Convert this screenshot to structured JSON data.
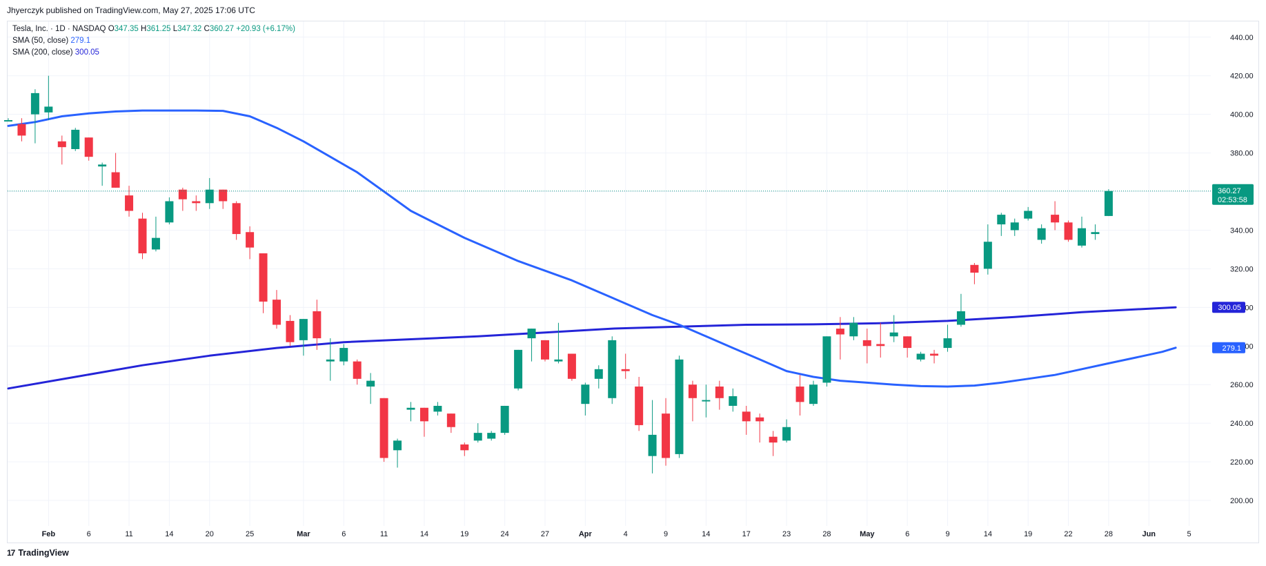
{
  "header": {
    "publisher_line": "Jhyerczyk published on TradingView.com, May 27, 2025 17:06 UTC"
  },
  "legend": {
    "symbol": "Tesla, Inc. · 1D · NASDAQ",
    "o_label": "O",
    "o_value": "347.35",
    "h_label": "H",
    "h_value": "361.25",
    "l_label": "L",
    "l_value": "347.32",
    "c_label": "C",
    "c_value": "360.27",
    "change": "+20.93 (+6.17%)",
    "sma50_label": "SMA (50, close)",
    "sma50_value": "279.1",
    "sma200_label": "SMA (200, close)",
    "sma200_value": "300.05"
  },
  "price_badge": {
    "value": "360.27",
    "countdown": "02:53:58"
  },
  "sma_badges": {
    "sma50": "279.1",
    "sma200": "300.05"
  },
  "brand": {
    "logo_text": "17",
    "name": "TradingView"
  },
  "colors": {
    "up": "#089981",
    "down": "#f23645",
    "sma50": "#2962ff",
    "sma200": "#2424d8",
    "last_price_line": "#089981"
  },
  "chart_data": {
    "type": "candlestick",
    "title": "Tesla, Inc. · 1D · NASDAQ",
    "y_axis": {
      "ticks": [
        200,
        220,
        240,
        260,
        280,
        300,
        320,
        340,
        360,
        380,
        400,
        420,
        440
      ],
      "range": [
        195,
        446
      ]
    },
    "x_axis": {
      "ticks": [
        {
          "label": "Feb",
          "i": 3
        },
        {
          "label": "6",
          "i": 6
        },
        {
          "label": "11",
          "i": 9
        },
        {
          "label": "14",
          "i": 12
        },
        {
          "label": "20",
          "i": 15
        },
        {
          "label": "25",
          "i": 18
        },
        {
          "label": "Mar",
          "i": 22
        },
        {
          "label": "6",
          "i": 25
        },
        {
          "label": "11",
          "i": 28
        },
        {
          "label": "14",
          "i": 31
        },
        {
          "label": "19",
          "i": 34
        },
        {
          "label": "24",
          "i": 37
        },
        {
          "label": "27",
          "i": 40
        },
        {
          "label": "Apr",
          "i": 43
        },
        {
          "label": "4",
          "i": 46
        },
        {
          "label": "9",
          "i": 49
        },
        {
          "label": "14",
          "i": 52
        },
        {
          "label": "17",
          "i": 55
        },
        {
          "label": "23",
          "i": 58
        },
        {
          "label": "28",
          "i": 61
        },
        {
          "label": "May",
          "i": 64
        },
        {
          "label": "6",
          "i": 67
        },
        {
          "label": "9",
          "i": 70
        },
        {
          "label": "14",
          "i": 73
        },
        {
          "label": "19",
          "i": 76
        },
        {
          "label": "22",
          "i": 79
        },
        {
          "label": "28",
          "i": 82
        },
        {
          "label": "Jun",
          "i": 85
        },
        {
          "label": "5",
          "i": 88
        }
      ]
    },
    "candles": [
      {
        "o": 397,
        "h": 398,
        "l": 397,
        "c": 397
      },
      {
        "o": 395,
        "h": 398,
        "l": 386,
        "c": 389
      },
      {
        "o": 400,
        "h": 413,
        "l": 385,
        "c": 411
      },
      {
        "o": 401,
        "h": 420,
        "l": 397,
        "c": 404
      },
      {
        "o": 386,
        "h": 389,
        "l": 374,
        "c": 383
      },
      {
        "o": 382,
        "h": 393,
        "l": 381,
        "c": 392
      },
      {
        "o": 388,
        "h": 388,
        "l": 376,
        "c": 378
      },
      {
        "o": 373,
        "h": 375,
        "l": 363,
        "c": 374
      },
      {
        "o": 370,
        "h": 380,
        "l": 362,
        "c": 362
      },
      {
        "o": 358,
        "h": 363,
        "l": 347,
        "c": 350
      },
      {
        "o": 346,
        "h": 349,
        "l": 325,
        "c": 328
      },
      {
        "o": 330,
        "h": 347,
        "l": 329,
        "c": 336
      },
      {
        "o": 344,
        "h": 357,
        "l": 343,
        "c": 355
      },
      {
        "o": 361,
        "h": 362,
        "l": 350,
        "c": 356
      },
      {
        "o": 355,
        "h": 358,
        "l": 350,
        "c": 354
      },
      {
        "o": 354,
        "h": 367,
        "l": 351,
        "c": 361
      },
      {
        "o": 361,
        "h": 361,
        "l": 351,
        "c": 355
      },
      {
        "o": 354,
        "h": 355,
        "l": 335,
        "c": 338
      },
      {
        "o": 339,
        "h": 342,
        "l": 325,
        "c": 331
      },
      {
        "o": 328,
        "h": 328,
        "l": 297,
        "c": 303
      },
      {
        "o": 304,
        "h": 309,
        "l": 289,
        "c": 291
      },
      {
        "o": 293,
        "h": 296,
        "l": 280,
        "c": 282
      },
      {
        "o": 283,
        "h": 294,
        "l": 275,
        "c": 294
      },
      {
        "o": 298,
        "h": 304,
        "l": 278,
        "c": 284
      },
      {
        "o": 272,
        "h": 284,
        "l": 262,
        "c": 273
      },
      {
        "o": 272,
        "h": 281,
        "l": 270,
        "c": 279
      },
      {
        "o": 272,
        "h": 273,
        "l": 260,
        "c": 263
      },
      {
        "o": 259,
        "h": 266,
        "l": 250,
        "c": 262
      },
      {
        "o": 253,
        "h": 253,
        "l": 220,
        "c": 222
      },
      {
        "o": 226,
        "h": 232,
        "l": 217,
        "c": 231
      },
      {
        "o": 247,
        "h": 251,
        "l": 241,
        "c": 248
      },
      {
        "o": 248,
        "h": 248,
        "l": 233,
        "c": 241
      },
      {
        "o": 246,
        "h": 251,
        "l": 244,
        "c": 249
      },
      {
        "o": 245,
        "h": 245,
        "l": 235,
        "c": 238
      },
      {
        "o": 229,
        "h": 230,
        "l": 223,
        "c": 226
      },
      {
        "o": 231,
        "h": 240,
        "l": 230,
        "c": 235
      },
      {
        "o": 232,
        "h": 236,
        "l": 231,
        "c": 235
      },
      {
        "o": 235,
        "h": 249,
        "l": 234,
        "c": 249
      },
      {
        "o": 258,
        "h": 278,
        "l": 257,
        "c": 278
      },
      {
        "o": 284,
        "h": 289,
        "l": 272,
        "c": 289
      },
      {
        "o": 283,
        "h": 283,
        "l": 272,
        "c": 273
      },
      {
        "o": 272,
        "h": 292,
        "l": 271,
        "c": 273
      },
      {
        "o": 276,
        "h": 276,
        "l": 262,
        "c": 263
      },
      {
        "o": 250,
        "h": 261,
        "l": 244,
        "c": 260
      },
      {
        "o": 263,
        "h": 270,
        "l": 258,
        "c": 268
      },
      {
        "o": 253,
        "h": 285,
        "l": 250,
        "c": 283
      },
      {
        "o": 268,
        "h": 276,
        "l": 263,
        "c": 267
      },
      {
        "o": 259,
        "h": 264,
        "l": 236,
        "c": 239
      },
      {
        "o": 223,
        "h": 252,
        "l": 214,
        "c": 234
      },
      {
        "o": 245,
        "h": 253,
        "l": 218,
        "c": 222
      },
      {
        "o": 224,
        "h": 275,
        "l": 222,
        "c": 273
      },
      {
        "o": 260,
        "h": 262,
        "l": 241,
        "c": 253
      },
      {
        "o": 252,
        "h": 260,
        "l": 243,
        "c": 252
      },
      {
        "o": 259,
        "h": 262,
        "l": 247,
        "c": 253
      },
      {
        "o": 249,
        "h": 258,
        "l": 246,
        "c": 254
      },
      {
        "o": 246,
        "h": 249,
        "l": 234,
        "c": 241
      },
      {
        "o": 243,
        "h": 245,
        "l": 230,
        "c": 241
      },
      {
        "o": 233,
        "h": 236,
        "l": 223,
        "c": 230
      },
      {
        "o": 231,
        "h": 242,
        "l": 230,
        "c": 238
      },
      {
        "o": 259,
        "h": 265,
        "l": 244,
        "c": 251
      },
      {
        "o": 250,
        "h": 262,
        "l": 249,
        "c": 260
      },
      {
        "o": 261,
        "h": 285,
        "l": 259,
        "c": 285
      },
      {
        "o": 289,
        "h": 295,
        "l": 273,
        "c": 286
      },
      {
        "o": 285,
        "h": 295,
        "l": 283,
        "c": 292
      },
      {
        "o": 283,
        "h": 289,
        "l": 271,
        "c": 280
      },
      {
        "o": 281,
        "h": 292,
        "l": 274,
        "c": 280
      },
      {
        "o": 285,
        "h": 296,
        "l": 282,
        "c": 287
      },
      {
        "o": 285,
        "h": 285,
        "l": 274,
        "c": 279
      },
      {
        "o": 273,
        "h": 277,
        "l": 272,
        "c": 276
      },
      {
        "o": 276,
        "h": 278,
        "l": 271,
        "c": 275
      },
      {
        "o": 279,
        "h": 291,
        "l": 277,
        "c": 284
      },
      {
        "o": 291,
        "h": 307,
        "l": 290,
        "c": 298
      },
      {
        "o": 322,
        "h": 323,
        "l": 312,
        "c": 318
      },
      {
        "o": 320,
        "h": 343,
        "l": 317,
        "c": 334
      },
      {
        "o": 343,
        "h": 349,
        "l": 337,
        "c": 348
      },
      {
        "o": 340,
        "h": 346,
        "l": 337,
        "c": 344
      },
      {
        "o": 346,
        "h": 352,
        "l": 345,
        "c": 350
      },
      {
        "o": 335,
        "h": 343,
        "l": 333,
        "c": 341
      },
      {
        "o": 348,
        "h": 355,
        "l": 340,
        "c": 344
      },
      {
        "o": 344,
        "h": 345,
        "l": 334,
        "c": 335
      },
      {
        "o": 332,
        "h": 347,
        "l": 331,
        "c": 341
      },
      {
        "o": 338,
        "h": 343,
        "l": 335,
        "c": 339
      },
      {
        "o": 347.35,
        "h": 361.25,
        "l": 347.32,
        "c": 360.27
      }
    ],
    "series": [
      {
        "name": "SMA (50, close)",
        "color": "#2962ff",
        "points": [
          [
            0,
            394
          ],
          [
            2,
            396
          ],
          [
            4,
            399
          ],
          [
            6,
            400.5
          ],
          [
            8,
            401.5
          ],
          [
            10,
            402
          ],
          [
            12,
            402
          ],
          [
            14,
            402
          ],
          [
            16,
            401.8
          ],
          [
            18,
            399
          ],
          [
            20,
            393
          ],
          [
            22,
            386
          ],
          [
            24,
            378
          ],
          [
            26,
            370
          ],
          [
            28,
            360
          ],
          [
            30,
            350
          ],
          [
            32,
            343
          ],
          [
            34,
            336
          ],
          [
            36,
            330
          ],
          [
            38,
            324
          ],
          [
            40,
            319
          ],
          [
            42,
            314
          ],
          [
            44,
            308
          ],
          [
            46,
            302
          ],
          [
            48,
            296
          ],
          [
            50,
            291
          ],
          [
            52,
            285
          ],
          [
            54,
            279
          ],
          [
            56,
            273
          ],
          [
            58,
            267
          ],
          [
            60,
            264
          ],
          [
            62,
            262
          ],
          [
            64,
            261
          ],
          [
            66,
            260
          ],
          [
            68,
            259.2
          ],
          [
            70,
            259
          ],
          [
            72,
            259.5
          ],
          [
            74,
            261
          ],
          [
            76,
            263
          ],
          [
            78,
            265
          ],
          [
            80,
            268
          ],
          [
            82,
            271
          ],
          [
            84,
            274
          ],
          [
            86,
            277
          ],
          [
            87,
            279.1
          ]
        ]
      },
      {
        "name": "SMA (200, close)",
        "color": "#2424d8",
        "points": [
          [
            0,
            258
          ],
          [
            5,
            264
          ],
          [
            10,
            270
          ],
          [
            15,
            275
          ],
          [
            20,
            279
          ],
          [
            25,
            282
          ],
          [
            30,
            283.5
          ],
          [
            35,
            285
          ],
          [
            40,
            287
          ],
          [
            45,
            289
          ],
          [
            50,
            290
          ],
          [
            55,
            291
          ],
          [
            60,
            291.2
          ],
          [
            65,
            291.8
          ],
          [
            70,
            293
          ],
          [
            75,
            295
          ],
          [
            80,
            297.5
          ],
          [
            87,
            300.05
          ]
        ]
      }
    ]
  }
}
